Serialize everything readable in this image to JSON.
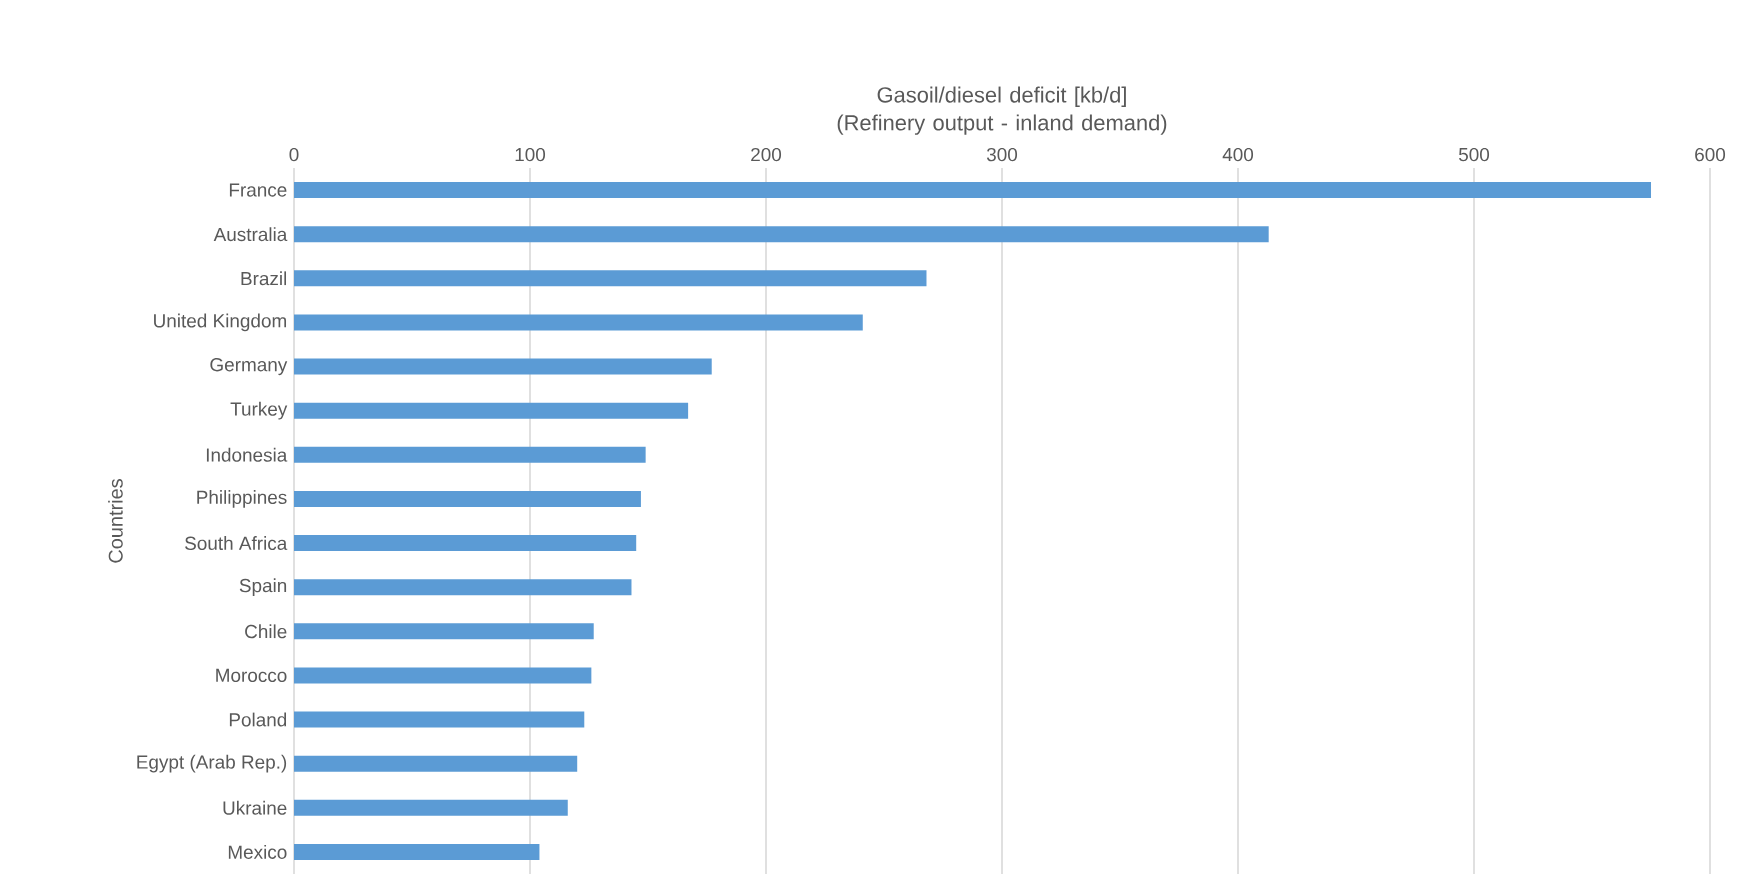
{
  "chart_data": {
    "type": "bar",
    "orientation": "horizontal",
    "xlabel": "Gasoil/diesel deficit [kb/d] (Refinery output - inland demand)",
    "ylabel": "Countries",
    "categories": [
      "France",
      "Australia",
      "Brazil",
      "United Kingdom",
      "Germany",
      "Turkey",
      "Indonesia",
      "Philippines",
      "South Africa",
      "Spain",
      "Chile",
      "Morocco",
      "Poland",
      "Egypt (Arab Rep.)",
      "Ukraine",
      "Mexico"
    ],
    "values": [
      575,
      413,
      268,
      241,
      177,
      167,
      149,
      147,
      145,
      143,
      127,
      126,
      123,
      120,
      116,
      104
    ],
    "color": "#5b9bd5",
    "xlim": [
      0,
      600
    ],
    "xticks": [
      0,
      100,
      200,
      300,
      400,
      500,
      600
    ],
    "grid": "x"
  }
}
